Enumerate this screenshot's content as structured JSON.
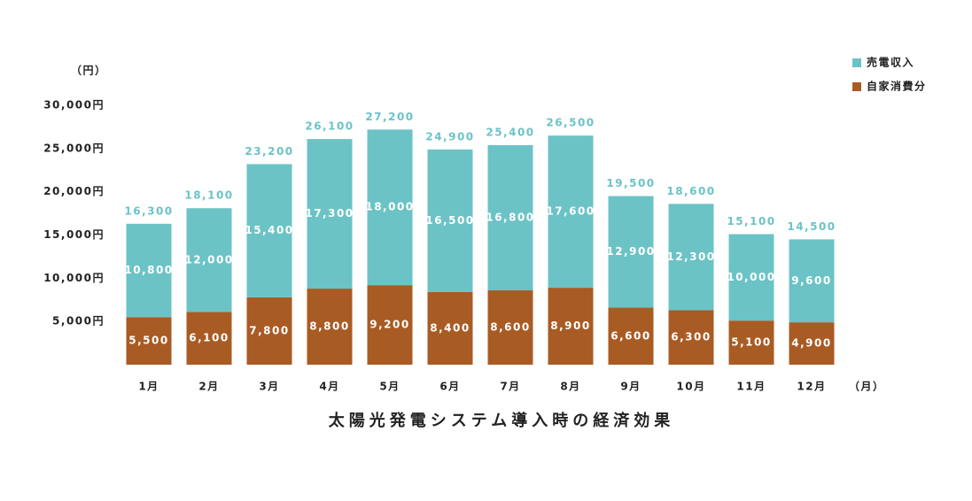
{
  "chart_data": {
    "type": "stacked_bar",
    "title": "太陽光発電システム導入時の経済効果",
    "y_unit_label": "（円）",
    "x_unit_label": "（月）",
    "categories": [
      "1月",
      "2月",
      "3月",
      "4月",
      "5月",
      "6月",
      "7月",
      "8月",
      "9月",
      "10月",
      "11月",
      "12月"
    ],
    "series": [
      {
        "name": "自家消費分",
        "color": "#a95b24",
        "values": [
          5500,
          6100,
          7800,
          8800,
          9200,
          8400,
          8600,
          8900,
          6600,
          6300,
          5100,
          4900
        ],
        "value_labels": [
          "5,500",
          "6,100",
          "7,800",
          "8,800",
          "9,200",
          "8,400",
          "8,600",
          "8,900",
          "6,600",
          "6,300",
          "5,100",
          "4,900"
        ]
      },
      {
        "name": "売電収入",
        "color": "#6cc3c6",
        "values": [
          10800,
          12000,
          15400,
          17300,
          18000,
          16500,
          16800,
          17600,
          12900,
          12300,
          10000,
          9600
        ],
        "value_labels": [
          "10,800",
          "12,000",
          "15,400",
          "17,300",
          "18,000",
          "16,500",
          "16,800",
          "17,600",
          "12,900",
          "12,300",
          "10,000",
          "9,600"
        ]
      }
    ],
    "total_labels": [
      "16,300",
      "18,100",
      "23,200",
      "26,100",
      "27,200",
      "24,900",
      "25,400",
      "26,500",
      "19,500",
      "18,600",
      "15,100",
      "14,500"
    ],
    "ylim": [
      0,
      30000
    ],
    "yticks": [
      {
        "value": 5000,
        "label": "5,000円"
      },
      {
        "value": 10000,
        "label": "10,000円"
      },
      {
        "value": 15000,
        "label": "15,000円"
      },
      {
        "value": 20000,
        "label": "20,000円"
      },
      {
        "value": 25000,
        "label": "25,000円"
      },
      {
        "value": 30000,
        "label": "30,000円"
      }
    ],
    "legend": "top-right"
  }
}
